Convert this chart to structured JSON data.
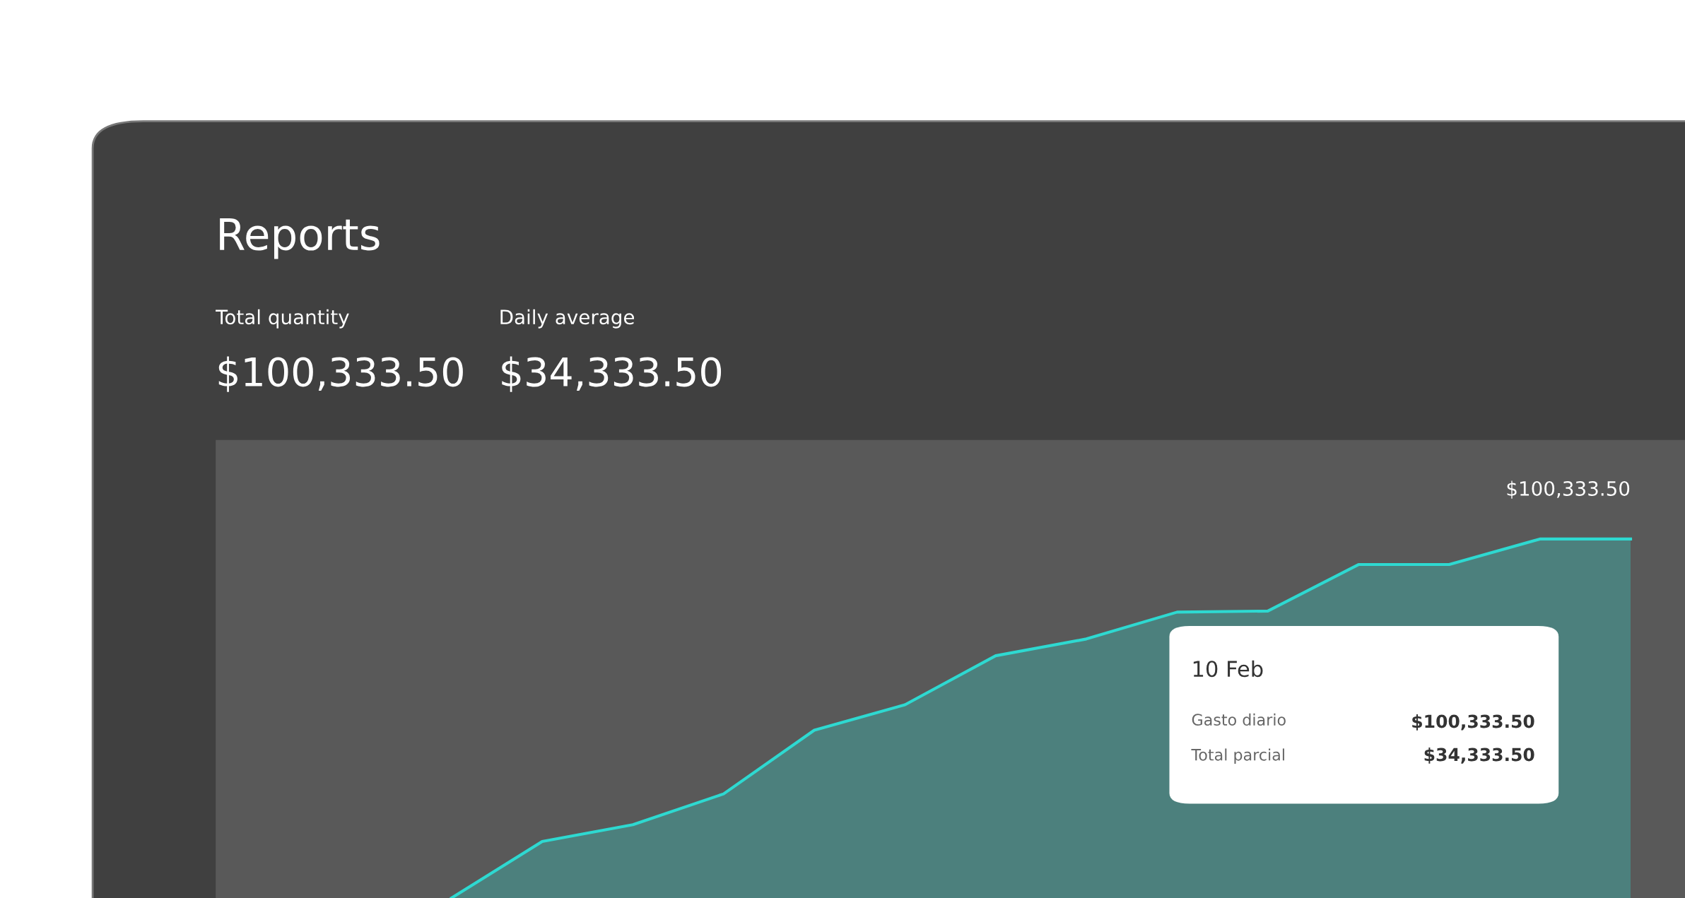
{
  "chart_data": {
    "type": "area",
    "title": "Reports",
    "categories": [
      null,
      null,
      null,
      null,
      null,
      null,
      null,
      null,
      null,
      null,
      null,
      null,
      null,
      null
    ],
    "ylim": [
      0,
      128000
    ],
    "series": [
      {
        "color": "#2ed9d1",
        "values": [
          0,
          15800,
          20500,
          29100,
          46900,
          54000,
          67700,
          72400,
          79900,
          80200,
          93200,
          93200,
          100333.5,
          100333.5
        ],
        "value_labels": [
          null,
          null,
          null,
          null,
          null,
          null,
          null,
          null,
          null,
          null,
          null,
          null,
          null,
          "$100,333.50"
        ]
      }
    ],
    "annotations": [
      "Total quantity",
      "$100,333.50",
      "Daily average",
      "$34,333.50",
      "10 Feb",
      "Gasto diario",
      "$100,333.50",
      "Total parcial",
      "$34,333.50"
    ]
  }
}
